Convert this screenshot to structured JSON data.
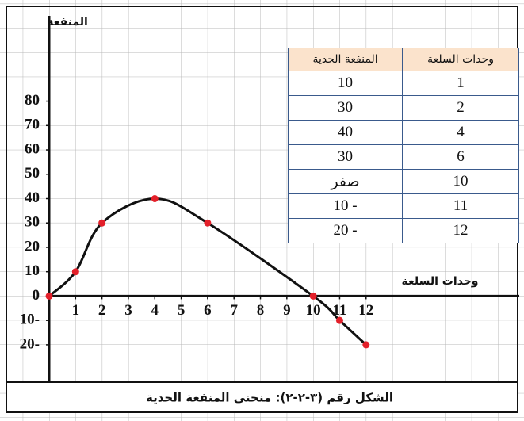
{
  "chart_data": {
    "type": "line",
    "title": "الشكل رقم (٣-٢-٢): منحنى المنفعة الحدية",
    "x_label": "وحدات السلعة",
    "y_label": "المنفعة",
    "x": [
      0,
      1,
      2,
      4,
      6,
      10,
      11,
      12
    ],
    "series": [
      {
        "name": "المنفعة الحدية",
        "color": "#111111",
        "marker_color": "#e3202a",
        "values": [
          0,
          10,
          30,
          40,
          30,
          0,
          -10,
          -20
        ]
      }
    ],
    "xlim": [
      0,
      17.8
    ],
    "ylim": [
      -35,
      115
    ],
    "xticks": [
      1,
      2,
      3,
      4,
      5,
      6,
      7,
      8,
      9,
      10,
      11,
      12
    ],
    "yticks": [
      {
        "value": -20,
        "label": "20-"
      },
      {
        "value": -10,
        "label": "10-"
      },
      0,
      10,
      20,
      30,
      40,
      50,
      60,
      70,
      80
    ]
  },
  "table": {
    "header": [
      "وحدات السلعة",
      "المنفعة الحدية"
    ],
    "rows": [
      [
        "1",
        "10"
      ],
      [
        "2",
        "30"
      ],
      [
        "4",
        "40"
      ],
      [
        "6",
        "30"
      ],
      [
        "10",
        "صفر"
      ],
      [
        "11",
        "10 -"
      ],
      [
        "12",
        "20 -"
      ]
    ]
  }
}
